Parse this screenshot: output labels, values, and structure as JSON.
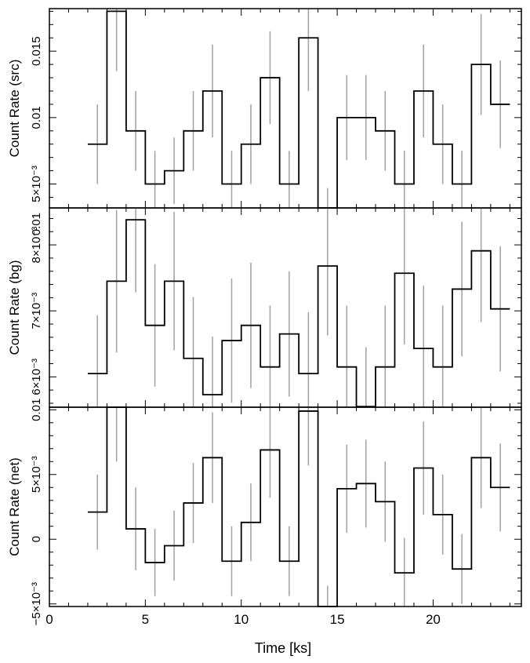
{
  "chart_data": [
    {
      "type": "line",
      "id": "src",
      "ylabel": "Count Rate (src)",
      "xlim": [
        0,
        24.6
      ],
      "ylim": [
        0.0032,
        0.0182
      ],
      "yticks": [
        {
          "value": 0.005,
          "label": "5×10⁻³"
        },
        {
          "value": 0.01,
          "label": "0.01"
        },
        {
          "value": 0.015,
          "label": "0.015"
        }
      ],
      "series": [
        {
          "values": [
            0.008,
            0.018,
            0.009,
            0.005,
            0.006,
            0.009,
            0.012,
            0.005,
            0.008,
            0.013,
            0.005,
            0.016,
            0.0032,
            0.01,
            0.01,
            0.009,
            0.005,
            0.012,
            0.008,
            0.005,
            0.014,
            0.011
          ],
          "errors": [
            0.003,
            0.0045,
            0.003,
            0.0025,
            0.0025,
            0.003,
            0.0035,
            0.0025,
            0.003,
            0.0035,
            0.0025,
            0.004,
            0.0015,
            0.0032,
            0.0032,
            0.003,
            0.0025,
            0.0035,
            0.003,
            0.0025,
            0.0038,
            0.0033
          ]
        }
      ]
    },
    {
      "type": "line",
      "id": "bg",
      "ylabel": "Count Rate (bg)",
      "xlim": [
        0,
        24.6
      ],
      "ylim": [
        0.00554,
        0.00856
      ],
      "yticks": [
        {
          "value": 0.006,
          "label": "6×10⁻³"
        },
        {
          "value": 0.007,
          "label": "7×10⁻³"
        },
        {
          "value": 0.008,
          "label": "8×10⁻³"
        }
      ],
      "extra_ytick_label": "0.01",
      "series": [
        {
          "values": [
            0.00605,
            0.00745,
            0.00838,
            0.00678,
            0.00745,
            0.00628,
            0.00573,
            0.00655,
            0.00678,
            0.00615,
            0.00665,
            0.00605,
            0.00768,
            0.00615,
            0.00555,
            0.00615,
            0.00757,
            0.00643,
            0.00615,
            0.00733,
            0.00791,
            0.00703
          ],
          "errors": [
            0.00088,
            0.00108,
            0.0011,
            0.00093,
            0.00105,
            0.00093,
            0.00088,
            0.00094,
            0.00095,
            0.00093,
            0.00095,
            0.00093,
            0.00105,
            0.00093,
            0.0009,
            0.00093,
            0.00108,
            0.00095,
            0.00093,
            0.00102,
            0.00108,
            0.00095
          ]
        }
      ]
    },
    {
      "type": "line",
      "id": "net",
      "ylabel": "Count Rate (net)",
      "xlabel": "Time [ks]",
      "xlim": [
        0,
        24.6
      ],
      "ylim": [
        -0.0052,
        0.0102
      ],
      "xticks": [
        {
          "value": 0,
          "label": "0"
        },
        {
          "value": 5,
          "label": "5"
        },
        {
          "value": 10,
          "label": "10"
        },
        {
          "value": 15,
          "label": "15"
        },
        {
          "value": 20,
          "label": "20"
        }
      ],
      "yticks": [
        {
          "value": -0.005,
          "label": "−5×10⁻³"
        },
        {
          "value": 0,
          "label": "0"
        },
        {
          "value": 0.005,
          "label": "5×10⁻³"
        },
        {
          "value": 0.01,
          "label": "0.01"
        }
      ],
      "series": [
        {
          "values": [
            0.0021,
            0.0102,
            0.0008,
            -0.0018,
            -0.0005,
            0.0028,
            0.0063,
            -0.0017,
            0.0013,
            0.0069,
            -0.0017,
            0.0099,
            -0.0052,
            0.0039,
            0.0043,
            0.0029,
            -0.0026,
            0.0055,
            0.0019,
            -0.0023,
            0.0063,
            0.004
          ],
          "errors": [
            0.0029,
            0.0042,
            0.0032,
            0.0026,
            0.0027,
            0.0031,
            0.0035,
            0.0027,
            0.003,
            0.0037,
            0.0027,
            0.0042,
            0.0016,
            0.0034,
            0.0034,
            0.0031,
            0.0027,
            0.0036,
            0.0031,
            0.0027,
            0.0039,
            0.0034
          ]
        }
      ]
    }
  ]
}
